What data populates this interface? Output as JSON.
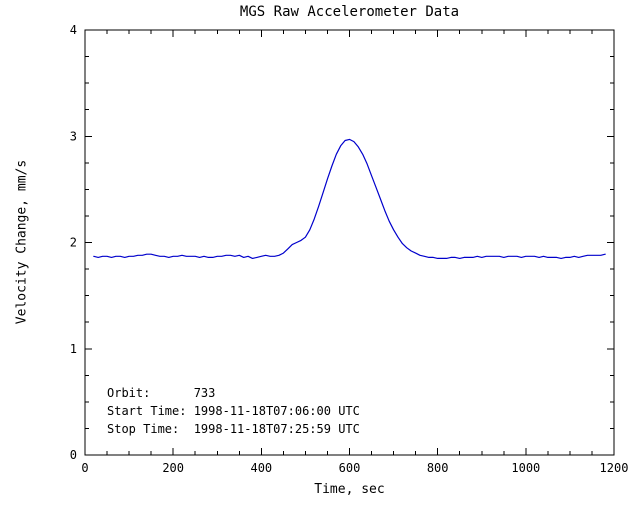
{
  "title": "MGS Raw Accelerometer Data",
  "colors": {
    "background": "#ffffff",
    "axis": "#000000",
    "text": "#000000",
    "line": "#0000cc"
  },
  "annotations": {
    "orbit": "Orbit:      733",
    "start_time": "Start Time: 1998-11-18T07:06:00 UTC",
    "stop_time": "Stop Time:  1998-11-18T07:25:59 UTC"
  },
  "chart_data": {
    "type": "line",
    "title": "MGS Raw Accelerometer Data",
    "xlabel": "Time, sec",
    "ylabel": "Velocity Change, mm/s",
    "xlim": [
      0,
      1200
    ],
    "ylim": [
      0,
      4
    ],
    "x_ticks": [
      0,
      200,
      400,
      600,
      800,
      1000,
      1200
    ],
    "y_ticks": [
      0,
      1,
      2,
      3,
      4
    ],
    "x_minor_step": 50,
    "y_minor_step": 0.25,
    "grid": false,
    "legend": "none",
    "series": [
      {
        "name": "Velocity Change",
        "color": "#0000cc",
        "x": [
          20,
          30,
          40,
          50,
          60,
          70,
          80,
          90,
          100,
          110,
          120,
          130,
          140,
          150,
          160,
          170,
          180,
          190,
          200,
          210,
          220,
          230,
          240,
          250,
          260,
          270,
          280,
          290,
          300,
          310,
          320,
          330,
          340,
          350,
          360,
          370,
          380,
          390,
          400,
          410,
          420,
          430,
          440,
          450,
          460,
          470,
          480,
          490,
          500,
          510,
          520,
          530,
          540,
          550,
          560,
          570,
          580,
          590,
          600,
          610,
          620,
          630,
          640,
          650,
          660,
          670,
          680,
          690,
          700,
          710,
          720,
          730,
          740,
          750,
          760,
          770,
          780,
          790,
          800,
          810,
          820,
          830,
          840,
          850,
          860,
          870,
          880,
          890,
          900,
          910,
          920,
          930,
          940,
          950,
          960,
          970,
          980,
          990,
          1000,
          1010,
          1020,
          1030,
          1040,
          1050,
          1060,
          1070,
          1080,
          1090,
          1100,
          1110,
          1120,
          1130,
          1140,
          1150,
          1160,
          1170,
          1180
        ],
        "y": [
          1.87,
          1.86,
          1.87,
          1.87,
          1.86,
          1.87,
          1.87,
          1.86,
          1.87,
          1.87,
          1.88,
          1.88,
          1.89,
          1.89,
          1.88,
          1.87,
          1.87,
          1.86,
          1.87,
          1.87,
          1.88,
          1.87,
          1.87,
          1.87,
          1.86,
          1.87,
          1.86,
          1.86,
          1.87,
          1.87,
          1.88,
          1.88,
          1.87,
          1.88,
          1.86,
          1.87,
          1.85,
          1.86,
          1.87,
          1.88,
          1.87,
          1.87,
          1.88,
          1.9,
          1.94,
          1.98,
          2.0,
          2.02,
          2.05,
          2.12,
          2.22,
          2.34,
          2.47,
          2.6,
          2.72,
          2.83,
          2.91,
          2.96,
          2.97,
          2.95,
          2.9,
          2.83,
          2.74,
          2.63,
          2.52,
          2.41,
          2.3,
          2.2,
          2.12,
          2.05,
          1.99,
          1.95,
          1.92,
          1.9,
          1.88,
          1.87,
          1.86,
          1.86,
          1.85,
          1.85,
          1.85,
          1.86,
          1.86,
          1.85,
          1.86,
          1.86,
          1.86,
          1.87,
          1.86,
          1.87,
          1.87,
          1.87,
          1.87,
          1.86,
          1.87,
          1.87,
          1.87,
          1.86,
          1.87,
          1.87,
          1.87,
          1.86,
          1.87,
          1.86,
          1.86,
          1.86,
          1.85,
          1.86,
          1.86,
          1.87,
          1.86,
          1.87,
          1.88,
          1.88,
          1.88,
          1.88,
          1.89
        ]
      }
    ]
  }
}
